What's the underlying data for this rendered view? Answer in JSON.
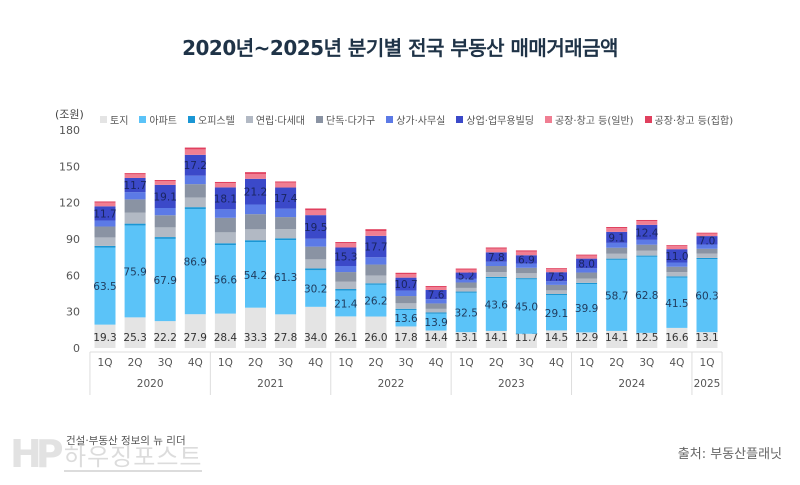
{
  "title": "2020년~2025년 분기별 전국 부동산 매매거래금액",
  "unit_label": "(조원)",
  "source": "출처: 부동산플래닛",
  "logo": {
    "tagline": "건설·부동산 정보의 뉴 리더",
    "name": "하우징포스트",
    "mark": "HP"
  },
  "chart_data": {
    "type": "bar",
    "stacked": true,
    "title": "2020년~2025년 분기별 전국 부동산 매매거래금액",
    "ylabel": "(조원)",
    "xlabel": "",
    "ylim": [
      0,
      180
    ],
    "yticks": [
      0,
      30,
      60,
      90,
      120,
      150,
      180
    ],
    "grid": false,
    "legend_position": "top",
    "categories": [
      "1Q",
      "2Q",
      "3Q",
      "4Q",
      "1Q",
      "2Q",
      "3Q",
      "4Q",
      "1Q",
      "2Q",
      "3Q",
      "4Q",
      "1Q",
      "2Q",
      "3Q",
      "4Q",
      "1Q",
      "2Q",
      "3Q",
      "4Q",
      "1Q"
    ],
    "year_groups": [
      {
        "label": "2020",
        "count": 4
      },
      {
        "label": "2021",
        "count": 4
      },
      {
        "label": "2022",
        "count": 4
      },
      {
        "label": "2023",
        "count": 4
      },
      {
        "label": "2024",
        "count": 4
      },
      {
        "label": "2025",
        "count": 1
      }
    ],
    "series": [
      {
        "name": "토지",
        "color": "#e4e4e4",
        "label_color": "#333333",
        "labeled": true,
        "values": [
          19.3,
          25.3,
          22.2,
          27.9,
          28.4,
          33.3,
          27.8,
          34.0,
          26.1,
          26.0,
          17.8,
          14.4,
          13.1,
          14.1,
          11.7,
          14.5,
          12.9,
          14.1,
          12.5,
          16.6,
          13.1
        ]
      },
      {
        "name": "아파트",
        "color": "#5bc3f8",
        "label_color": "#1f3a5c",
        "labeled": true,
        "values": [
          63.5,
          75.9,
          67.9,
          86.9,
          56.6,
          54.2,
          61.3,
          30.2,
          21.4,
          26.2,
          13.6,
          13.9,
          32.5,
          43.6,
          45.0,
          29.1,
          39.9,
          58.7,
          62.8,
          41.5,
          60.3
        ]
      },
      {
        "name": "오피스텔",
        "color": "#1a96d4",
        "labeled": false,
        "values": [
          1.5,
          1.5,
          1.5,
          1.5,
          1.5,
          1.5,
          1.5,
          1.5,
          1.2,
          1.2,
          1.0,
          1.0,
          1.0,
          1.0,
          1.0,
          1.0,
          1.0,
          1.0,
          1.0,
          1.0,
          1.0
        ]
      },
      {
        "name": "연립·다세대",
        "color": "#b2b9c4",
        "labeled": false,
        "values": [
          7.0,
          9.0,
          8.0,
          8.0,
          9.0,
          9.0,
          7.5,
          7.5,
          6.0,
          6.5,
          4.5,
          3.0,
          3.0,
          4.0,
          4.0,
          3.0,
          3.5,
          4.0,
          4.0,
          3.5,
          3.5
        ]
      },
      {
        "name": "단독·다가구",
        "color": "#8a93a3",
        "labeled": false,
        "values": [
          9.0,
          11.0,
          10.0,
          11.0,
          12.0,
          12.5,
          10.0,
          10.5,
          8.0,
          9.0,
          6.0,
          4.5,
          4.5,
          5.0,
          4.5,
          4.5,
          5.0,
          5.0,
          5.0,
          4.5,
          4.0
        ]
      },
      {
        "name": "상가·사무실",
        "color": "#5c7ae6",
        "labeled": false,
        "values": [
          5.0,
          6.0,
          6.0,
          7.0,
          7.0,
          8.0,
          7.0,
          6.5,
          5.0,
          6.0,
          4.5,
          3.5,
          3.0,
          3.5,
          3.5,
          3.0,
          3.5,
          4.0,
          4.0,
          3.5,
          3.5
        ]
      },
      {
        "name": "상업·업무용빌딩",
        "color": "#3b49c9",
        "label_color": "#1a2560",
        "labeled": true,
        "values": [
          11.7,
          11.7,
          19.1,
          17.2,
          18.1,
          21.2,
          17.4,
          19.5,
          15.3,
          17.7,
          10.7,
          7.6,
          5.2,
          7.8,
          6.9,
          7.5,
          8.0,
          9.1,
          12.4,
          11.0,
          7.0
        ]
      },
      {
        "name": "공장·창고 등(일반)",
        "color": "#f07e92",
        "labeled": false,
        "values": [
          3.0,
          3.0,
          3.0,
          4.5,
          3.5,
          4.0,
          4.0,
          4.0,
          3.5,
          4.0,
          3.0,
          2.5,
          2.5,
          3.0,
          3.0,
          2.5,
          2.5,
          3.0,
          3.0,
          2.5,
          2.0
        ]
      },
      {
        "name": "공장·창고 등(집합)",
        "color": "#e0405e",
        "labeled": false,
        "values": [
          1.0,
          1.0,
          1.0,
          1.5,
          1.0,
          1.5,
          1.0,
          1.5,
          1.0,
          1.5,
          1.0,
          0.8,
          0.8,
          1.0,
          1.0,
          0.8,
          0.8,
          1.0,
          1.0,
          0.8,
          0.8
        ]
      }
    ]
  }
}
